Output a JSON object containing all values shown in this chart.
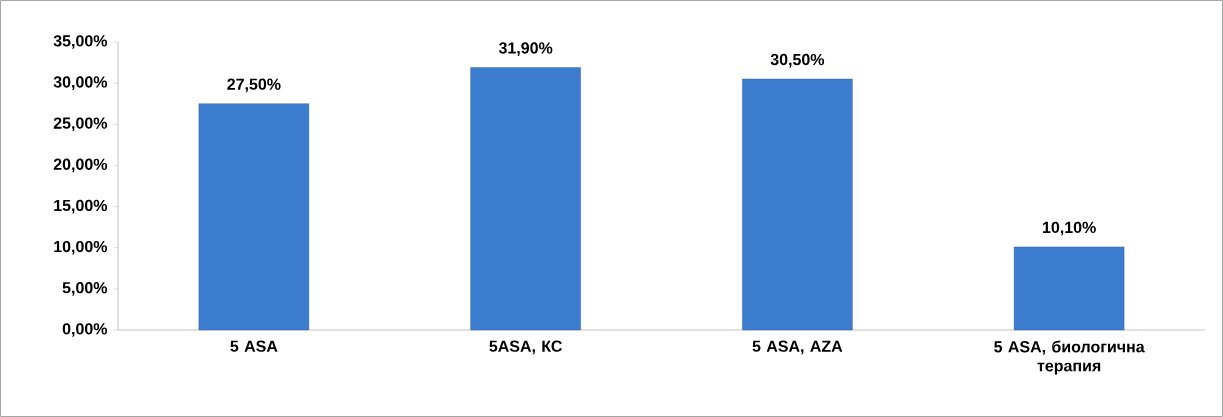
{
  "chart_data": {
    "type": "bar",
    "categories": [
      "5 ASA",
      "5ASA, КС",
      "5 ASA, AZA",
      "5 ASA, биологична терапия"
    ],
    "values": [
      27.5,
      31.9,
      30.5,
      10.1
    ],
    "value_labels": [
      "27,50%",
      "31,90%",
      "30,50%",
      "10,10%"
    ],
    "color": "#3c7dd0",
    "ylim": [
      0,
      35
    ],
    "yticks": [
      {
        "value": 0,
        "label": "0,00%"
      },
      {
        "value": 5,
        "label": "5,00%"
      },
      {
        "value": 10,
        "label": "10,00%"
      },
      {
        "value": 15,
        "label": "15,00%"
      },
      {
        "value": 20,
        "label": "20,00%"
      },
      {
        "value": 25,
        "label": "25,00%"
      },
      {
        "value": 30,
        "label": "30,00%"
      },
      {
        "value": 35,
        "label": "35,00%"
      }
    ],
    "grid": false
  }
}
